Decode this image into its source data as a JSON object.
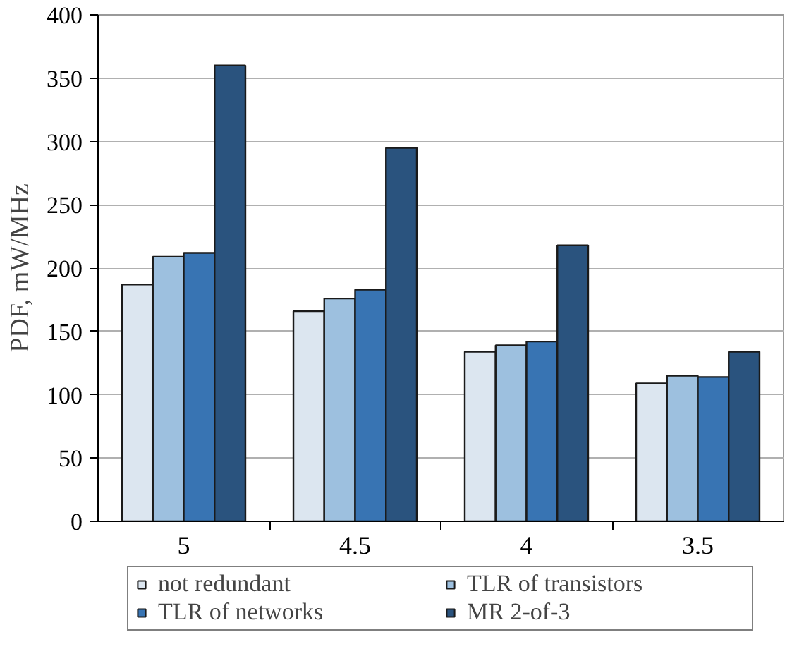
{
  "chart_data": {
    "type": "bar",
    "ylabel": "PDF, mW/MHz",
    "categories": [
      "5",
      "4.5",
      "4",
      "3.5"
    ],
    "series": [
      {
        "name": "not redundant",
        "color": "#dce6f0",
        "values": [
          187,
          166,
          134,
          109
        ]
      },
      {
        "name": "TLR of transistors",
        "color": "#9dc0df",
        "values": [
          209,
          176,
          139,
          115
        ]
      },
      {
        "name": "TLR of networks",
        "color": "#3874b3",
        "values": [
          212,
          183,
          142,
          114
        ]
      },
      {
        "name": "MR 2-of-3",
        "color": "#2a537e",
        "values": [
          360,
          295,
          218,
          134
        ]
      }
    ],
    "ylim": [
      0,
      400
    ],
    "yticks": [
      0,
      50,
      100,
      150,
      200,
      250,
      300,
      350,
      400
    ],
    "grid": "y",
    "legend": "bottom"
  }
}
